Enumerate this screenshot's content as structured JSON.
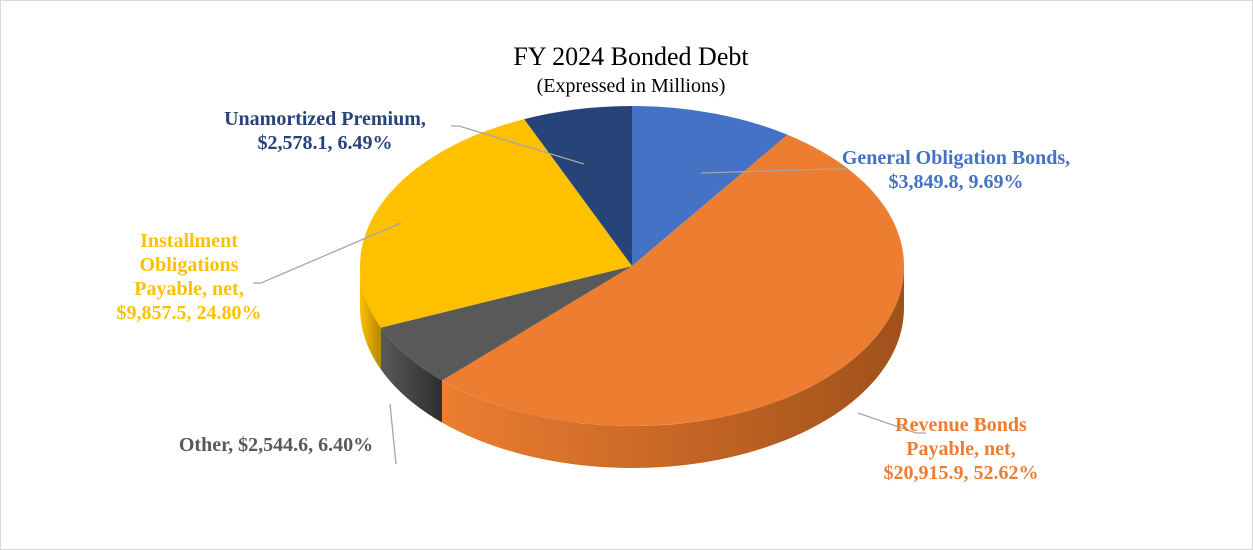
{
  "chart_data": {
    "type": "pie",
    "title": "FY 2024 Bonded Debt",
    "subtitle": "(Expressed in Millions)",
    "slices": [
      {
        "label_lines": [
          "General Obligation Bonds,",
          "$3,849.8, 9.69%"
        ],
        "name": "General Obligation Bonds",
        "value": 3849.8,
        "percent": 9.69,
        "color": "#4472C4",
        "side": "#2B4F8C"
      },
      {
        "label_lines": [
          "Revenue Bonds",
          "Payable, net,",
          "$20,915.9, 52.62%"
        ],
        "name": "Revenue Bonds Payable, net",
        "value": 20915.9,
        "percent": 52.62,
        "color": "#ED7D31",
        "side": "#A0511A"
      },
      {
        "label_lines": [
          "Other, $2,544.6, 6.40%"
        ],
        "name": "Other",
        "value": 2544.6,
        "percent": 6.4,
        "color": "#595959",
        "side": "#2E2E2E"
      },
      {
        "label_lines": [
          "Installment",
          "Obligations",
          "Payable, net,",
          "$9,857.5, 24.80%"
        ],
        "name": "Installment Obligations Payable, net",
        "value": 9857.5,
        "percent": 24.8,
        "color": "#FFC000",
        "side": "#B38600"
      },
      {
        "label_lines": [
          "Unamortized Premium,",
          "$2,578.1, 6.49%"
        ],
        "name": "Unamortized Premium",
        "value": 2578.1,
        "percent": 6.49,
        "color": "#264478",
        "side": "#17294A"
      }
    ],
    "label_colors": [
      "#4472C4",
      "#ED7D31",
      "#595959",
      "#FFC000",
      "#264478"
    ],
    "start": "12 o'clock",
    "direction": "clockwise",
    "style": "3d-tilted",
    "legend": "none",
    "leader_line_color": "#A6A6A6"
  }
}
